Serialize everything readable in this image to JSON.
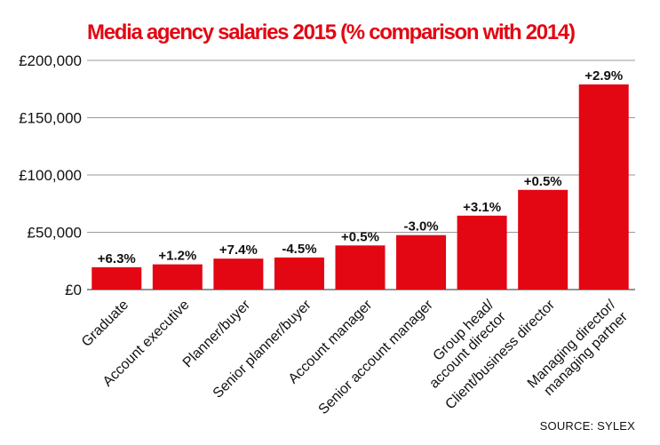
{
  "chart_data": {
    "type": "bar",
    "title": "Media agency salaries 2015 (% comparison with 2014)",
    "categories": [
      "Graduate",
      "Account executive",
      "Planner/buyer",
      "Senior planner/buyer",
      "Account manager",
      "Senior account manager",
      "Group head/ account director",
      "Client/business director",
      "Managing director/ managing partner"
    ],
    "category_lines": [
      [
        "Graduate"
      ],
      [
        "Account executive"
      ],
      [
        "Planner/buyer"
      ],
      [
        "Senior planner/buyer"
      ],
      [
        "Account manager"
      ],
      [
        "Senior account manager"
      ],
      [
        "Group head/",
        "account director"
      ],
      [
        "Client/business director"
      ],
      [
        "Managing director/",
        "managing partner"
      ]
    ],
    "values": [
      19500,
      22000,
      27000,
      28000,
      38500,
      47500,
      64500,
      87000,
      179000
    ],
    "data_labels": [
      "+6.3%",
      "+1.2%",
      "+7.4%",
      "-4.5%",
      "+0.5%",
      "-3.0%",
      "+3.1%",
      "+0.5%",
      "+2.9%"
    ],
    "ylim": [
      0,
      200000
    ],
    "yticks": [
      0,
      50000,
      100000,
      150000,
      200000
    ],
    "ytick_labels": [
      "£0",
      "£50,000",
      "£100,000",
      "£150,000",
      "£200,000"
    ],
    "xlabel": "",
    "ylabel": "",
    "grid": true,
    "bar_color": "#e30613",
    "title_color": "#e30613",
    "source": "SOURCE: SYLEX"
  }
}
